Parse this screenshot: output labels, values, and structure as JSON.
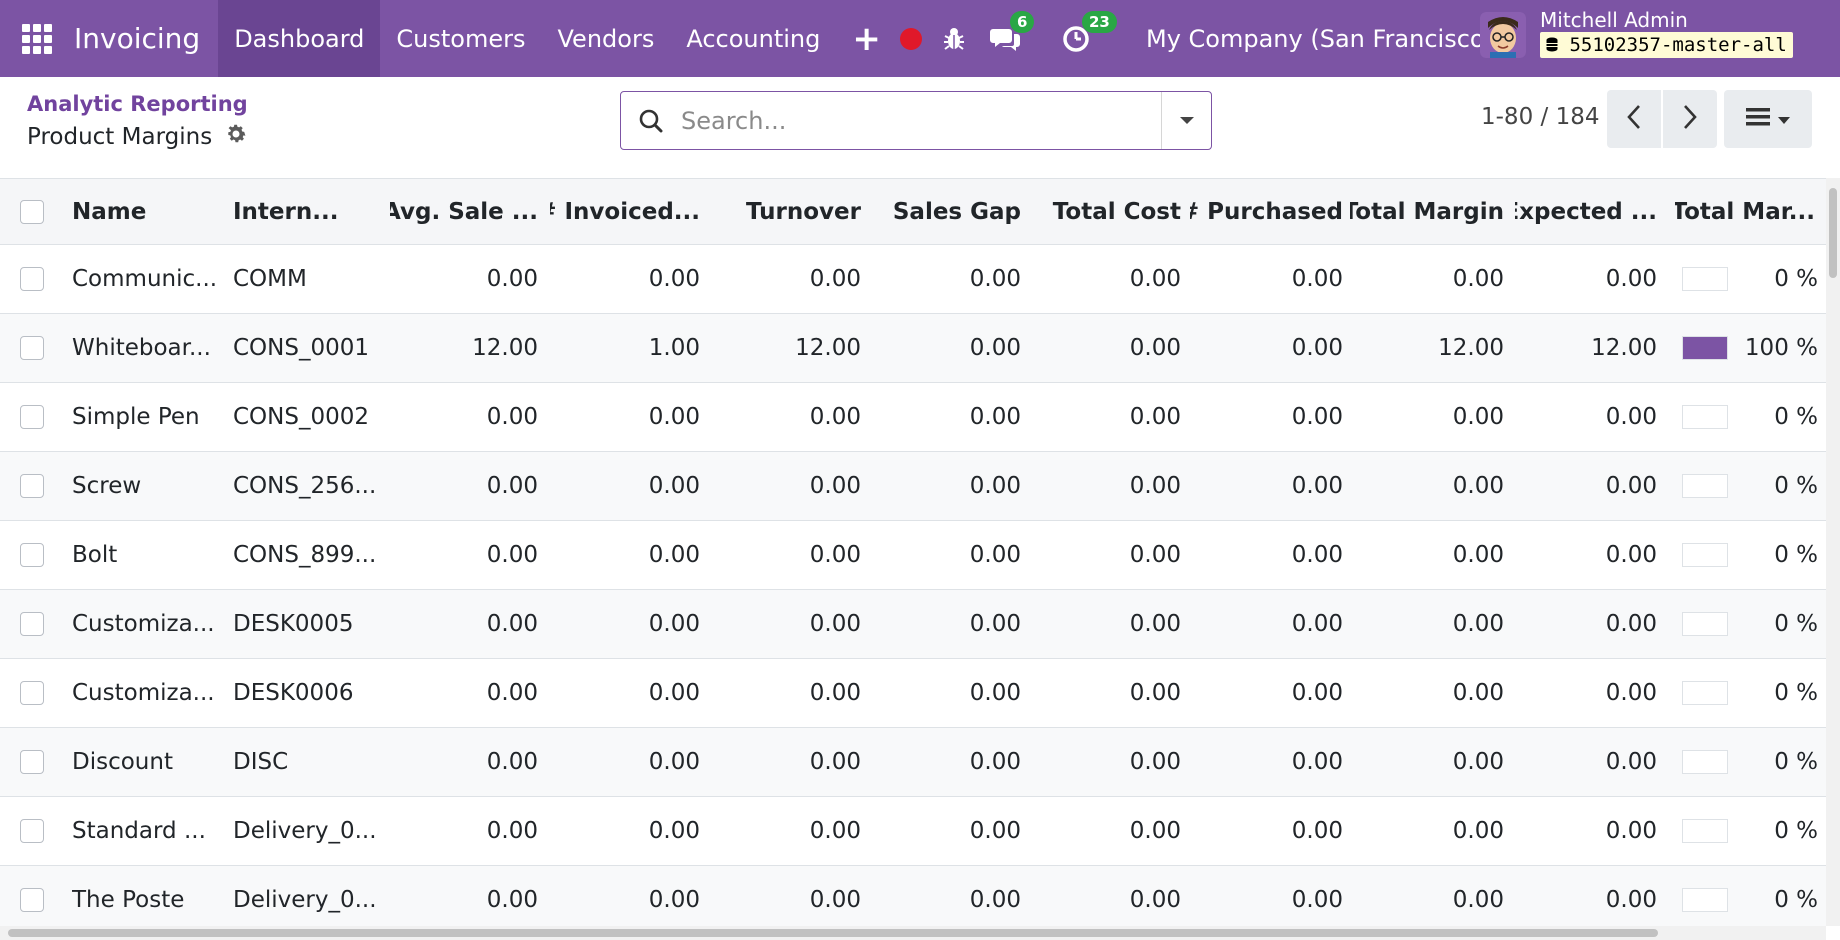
{
  "navbar": {
    "app_name": "Invoicing",
    "menu": [
      "Dashboard",
      "Customers",
      "Vendors",
      "Accounting"
    ],
    "plus": "+",
    "chat_count": "6",
    "activity_count": "23",
    "company": "My Company (San Francisco)",
    "user_name": "Mitchell Admin",
    "db_name": "55102357-master-all"
  },
  "control": {
    "breadcrumb": "Analytic Reporting",
    "title": "Product Margins",
    "search_placeholder": "Search...",
    "pager": "1-80 / 184"
  },
  "table": {
    "headers": [
      "Name",
      "Intern...",
      "Avg. Sale ...",
      "# Invoiced...",
      "Turnover",
      "Sales Gap",
      "Total Cost",
      "# Purchased",
      "Total Margin",
      "Expected ...",
      "Total Mar..."
    ],
    "rows": [
      {
        "name": "Communic...",
        "ref": "COMM",
        "vals": [
          "0.00",
          "0.00",
          "0.00",
          "0.00",
          "0.00",
          "0.00",
          "0.00",
          "0.00"
        ],
        "pct": "0 %",
        "pct_value": 0
      },
      {
        "name": "Whiteboar...",
        "ref": "CONS_0001",
        "vals": [
          "12.00",
          "1.00",
          "12.00",
          "0.00",
          "0.00",
          "0.00",
          "12.00",
          "12.00"
        ],
        "pct": "100 %",
        "pct_value": 100
      },
      {
        "name": "Simple Pen",
        "ref": "CONS_0002",
        "vals": [
          "0.00",
          "0.00",
          "0.00",
          "0.00",
          "0.00",
          "0.00",
          "0.00",
          "0.00"
        ],
        "pct": "0 %",
        "pct_value": 0
      },
      {
        "name": "Screw",
        "ref": "CONS_256...",
        "vals": [
          "0.00",
          "0.00",
          "0.00",
          "0.00",
          "0.00",
          "0.00",
          "0.00",
          "0.00"
        ],
        "pct": "0 %",
        "pct_value": 0
      },
      {
        "name": "Bolt",
        "ref": "CONS_899...",
        "vals": [
          "0.00",
          "0.00",
          "0.00",
          "0.00",
          "0.00",
          "0.00",
          "0.00",
          "0.00"
        ],
        "pct": "0 %",
        "pct_value": 0
      },
      {
        "name": "Customiza...",
        "ref": "DESK0005",
        "vals": [
          "0.00",
          "0.00",
          "0.00",
          "0.00",
          "0.00",
          "0.00",
          "0.00",
          "0.00"
        ],
        "pct": "0 %",
        "pct_value": 0
      },
      {
        "name": "Customiza...",
        "ref": "DESK0006",
        "vals": [
          "0.00",
          "0.00",
          "0.00",
          "0.00",
          "0.00",
          "0.00",
          "0.00",
          "0.00"
        ],
        "pct": "0 %",
        "pct_value": 0
      },
      {
        "name": "Discount",
        "ref": "DISC",
        "vals": [
          "0.00",
          "0.00",
          "0.00",
          "0.00",
          "0.00",
          "0.00",
          "0.00",
          "0.00"
        ],
        "pct": "0 %",
        "pct_value": 0
      },
      {
        "name": "Standard ...",
        "ref": "Delivery_0...",
        "vals": [
          "0.00",
          "0.00",
          "0.00",
          "0.00",
          "0.00",
          "0.00",
          "0.00",
          "0.00"
        ],
        "pct": "0 %",
        "pct_value": 0
      },
      {
        "name": "The Poste",
        "ref": "Delivery_0...",
        "vals": [
          "0.00",
          "0.00",
          "0.00",
          "0.00",
          "0.00",
          "0.00",
          "0.00",
          "0.00"
        ],
        "pct": "0 %",
        "pct_value": 0
      }
    ]
  },
  "colors": {
    "brand": "#7c54a4",
    "badge": "#29a745",
    "record": "#e0182a"
  }
}
